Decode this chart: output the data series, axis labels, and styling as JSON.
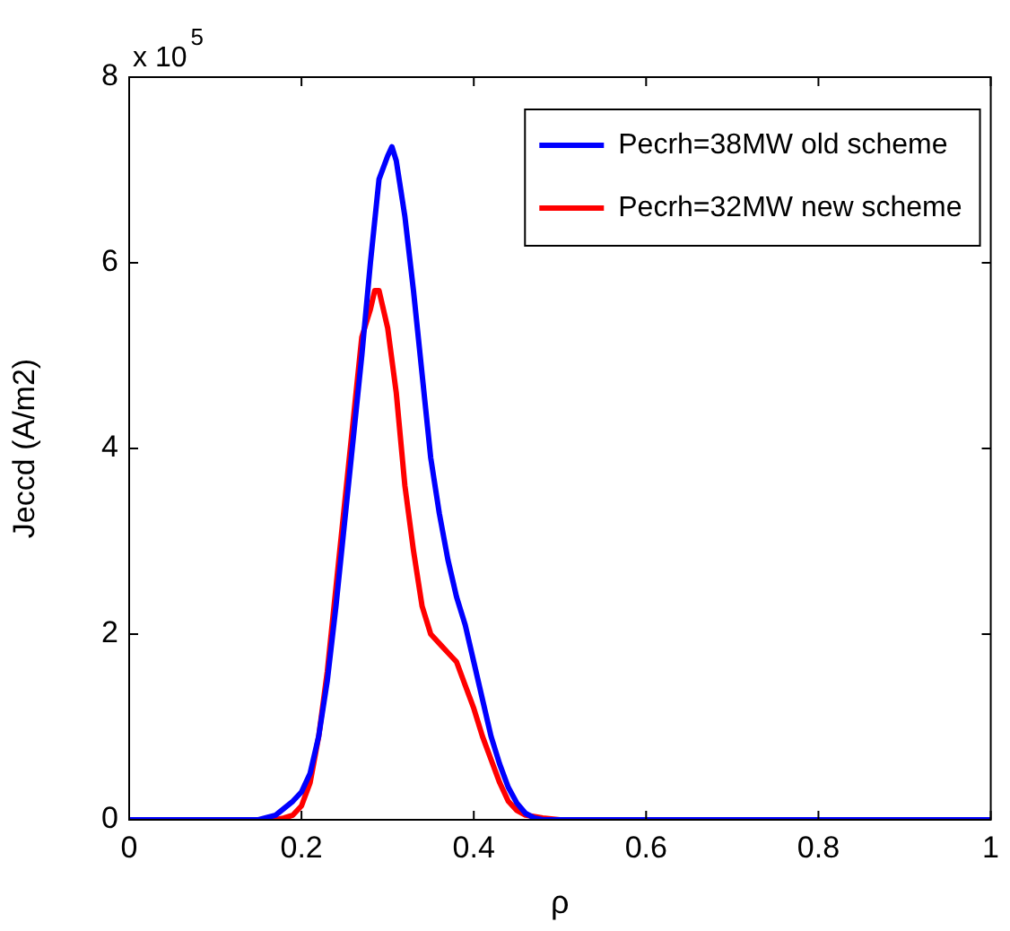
{
  "chart_data": {
    "type": "line",
    "xlabel": "ρ",
    "ylabel": "Jeccd (A/m2)",
    "annotations": [
      "x 10$^{5}$"
    ],
    "xlim": [
      0,
      1
    ],
    "xticks": [
      0,
      0.2,
      0.4,
      0.6,
      0.8,
      1
    ],
    "ylim": [
      0,
      8
    ],
    "yticks": [
      0,
      2,
      4,
      6,
      8
    ],
    "grid": false,
    "legend": "top right",
    "marker": "none",
    "line_style": "solid",
    "series": [
      {
        "name": "Pecrh=38MW old scheme",
        "color": "#0000ff",
        "x": [
          0,
          0.15,
          0.17,
          0.19,
          0.2,
          0.21,
          0.22,
          0.23,
          0.24,
          0.25,
          0.26,
          0.27,
          0.28,
          0.29,
          0.3,
          0.305,
          0.31,
          0.32,
          0.33,
          0.34,
          0.35,
          0.36,
          0.37,
          0.38,
          0.39,
          0.4,
          0.41,
          0.42,
          0.43,
          0.44,
          0.45,
          0.46,
          0.47,
          0.48,
          1
        ],
        "values": [
          0,
          0,
          0.05,
          0.2,
          0.3,
          0.5,
          0.9,
          1.5,
          2.3,
          3.2,
          4.1,
          5,
          6,
          6.9,
          7.15,
          7.25,
          7.1,
          6.5,
          5.7,
          4.8,
          3.9,
          3.3,
          2.8,
          2.4,
          2.1,
          1.7,
          1.3,
          0.9,
          0.6,
          0.35,
          0.18,
          0.07,
          0.02,
          0,
          0
        ]
      },
      {
        "name": "Pecrh=32MW new scheme",
        "color": "#ff0000",
        "x": [
          0,
          0.17,
          0.18,
          0.19,
          0.2,
          0.21,
          0.22,
          0.23,
          0.24,
          0.25,
          0.26,
          0.27,
          0.28,
          0.285,
          0.29,
          0.3,
          0.31,
          0.32,
          0.33,
          0.34,
          0.35,
          0.36,
          0.37,
          0.38,
          0.39,
          0.4,
          0.41,
          0.42,
          0.43,
          0.44,
          0.45,
          0.46,
          0.48,
          0.5,
          1
        ],
        "values": [
          0,
          0,
          0.02,
          0.05,
          0.15,
          0.4,
          0.9,
          1.6,
          2.5,
          3.4,
          4.3,
          5.2,
          5.5,
          5.7,
          5.7,
          5.3,
          4.6,
          3.6,
          2.9,
          2.3,
          2,
          1.9,
          1.8,
          1.7,
          1.45,
          1.2,
          0.9,
          0.65,
          0.4,
          0.2,
          0.1,
          0.05,
          0.02,
          0,
          0
        ]
      }
    ]
  }
}
